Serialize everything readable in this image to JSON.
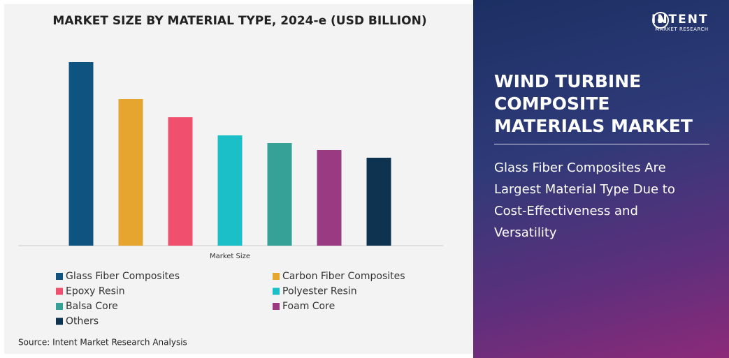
{
  "chart_data": {
    "type": "bar",
    "title": "MARKET SIZE BY MATERIAL TYPE, 2024-e (USD BILLION)",
    "xlabel": "Market Size",
    "series": [
      {
        "name": "Glass Fiber Composites",
        "color": "#0f5480",
        "values": [
          263
        ]
      },
      {
        "name": "Carbon Fiber Composites",
        "color": "#e5a52f",
        "values": [
          210
        ]
      },
      {
        "name": "Epoxy Resin",
        "color": "#f0506e",
        "values": [
          184
        ]
      },
      {
        "name": "Polyester Resin",
        "color": "#1bbfc8",
        "values": [
          158
        ]
      },
      {
        "name": "Balsa Core",
        "color": "#36a196",
        "values": [
          147
        ]
      },
      {
        "name": "Foam Core",
        "color": "#9a3a83",
        "values": [
          137
        ]
      },
      {
        "name": "Others",
        "color": "#0d3350",
        "values": [
          126
        ]
      }
    ],
    "source": "Source: Intent Market Research Analysis"
  },
  "panel": {
    "logo_name": "INTENT",
    "logo_tagline": "MARKET RESEARCH",
    "title": "WIND TURBINE COMPOSITE MATERIALS MARKET",
    "headline": "Glass Fiber Composites Are Largest Material Type Due to Cost-Effectiveness and Versatility"
  }
}
